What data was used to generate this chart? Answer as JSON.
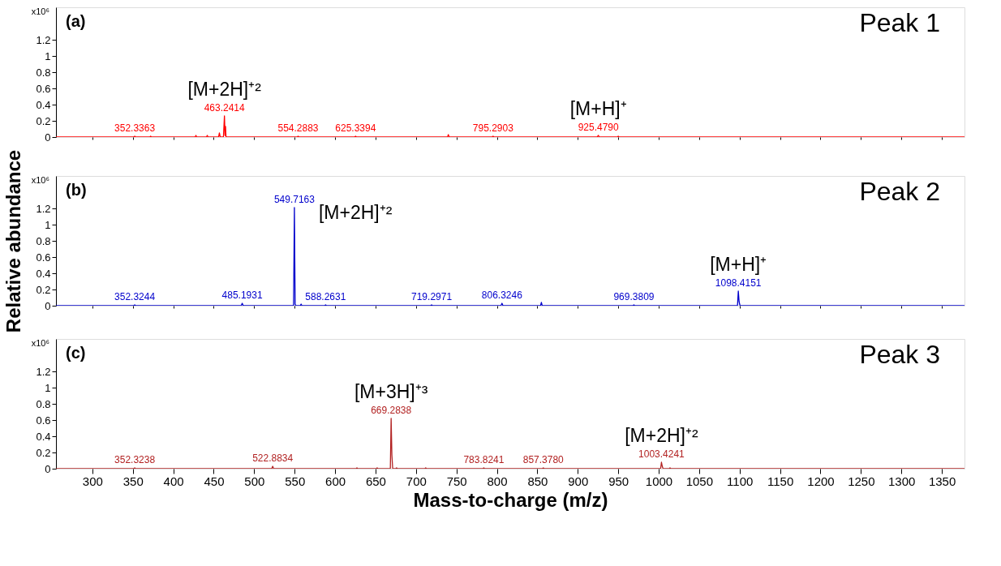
{
  "chart_data": [
    {
      "type": "line",
      "xlim": [
        255,
        1378
      ],
      "ylim": [
        0,
        1.6
      ],
      "yticks": [
        0,
        0.2,
        0.4,
        0.6,
        0.8,
        1,
        1.2
      ],
      "xticks": [
        300,
        350,
        400,
        450,
        500,
        550,
        600,
        650,
        700,
        750,
        800,
        850,
        900,
        950,
        1000,
        1050,
        1100,
        1150,
        1200,
        1250,
        1300,
        1350
      ],
      "tick_labels": "y",
      "series": [
        {
          "color": "#ff0000",
          "x": [
            255,
            351,
            352.3363,
            353.5,
            371,
            372,
            373,
            427,
            428,
            429,
            441,
            442,
            443,
            456,
            457,
            458,
            462,
            463.2414,
            464,
            464.6,
            465.2,
            553,
            554.2883,
            555.5,
            624,
            625.3394,
            626.5,
            739,
            740,
            741,
            794,
            795.2903,
            796.5,
            924,
            925.479,
            926.5,
            949,
            950,
            951,
            1378
          ],
          "values": [
            0,
            0,
            0.01,
            0,
            0,
            0.01,
            0,
            0,
            0.02,
            0,
            0,
            0.02,
            0,
            0,
            0.05,
            0,
            0,
            0.26,
            0.02,
            0.13,
            0,
            0,
            0.01,
            0,
            0,
            0.01,
            0,
            0,
            0.03,
            0,
            0,
            0.01,
            0,
            0,
            0.02,
            0,
            0,
            0.01,
            0,
            0
          ]
        }
      ],
      "annotations": [
        "x10⁶",
        "(a)",
        "Peak 1",
        {
          "text": "352.3363",
          "x": 352.3363,
          "y": 0.01
        },
        {
          "text": "463.2414",
          "x": 463.2414,
          "y": 0.26
        },
        {
          "text": "554.2883",
          "x": 554.2883,
          "y": 0.01
        },
        {
          "text": "625.3394",
          "x": 625.3394,
          "y": 0.01
        },
        {
          "text": "795.2903",
          "x": 795.2903,
          "y": 0.01
        },
        {
          "text": "925.4790",
          "x": 925.479,
          "y": 0.02
        },
        {
          "text": "[M+2H]⁺²",
          "x": 463.2414,
          "y": 0.26
        },
        {
          "text": "[M+H]⁺",
          "x": 925.479,
          "y": 0.02
        }
      ]
    },
    {
      "type": "line",
      "ylabel": "Relative abundance",
      "xlim": [
        255,
        1378
      ],
      "ylim": [
        0,
        1.6
      ],
      "yticks": [
        0,
        0.2,
        0.4,
        0.6,
        0.8,
        1,
        1.2
      ],
      "xticks": [
        300,
        350,
        400,
        450,
        500,
        550,
        600,
        650,
        700,
        750,
        800,
        850,
        900,
        950,
        1000,
        1050,
        1100,
        1150,
        1200,
        1250,
        1300,
        1350
      ],
      "tick_labels": "y",
      "series": [
        {
          "color": "#0000cc",
          "x": [
            255,
            351,
            352.3244,
            353.5,
            484,
            485.1931,
            486.5,
            548.7,
            549.7163,
            550.2,
            550.6,
            551.5,
            557,
            558,
            559,
            587,
            588.2631,
            589.5,
            718,
            719.2971,
            720.5,
            805,
            806.3246,
            807.5,
            854,
            855,
            856,
            968,
            969.3809,
            970.5,
            1097.4,
            1098.4151,
            1099.4,
            1100.5,
            1378
          ],
          "values": [
            0,
            0,
            0.01,
            0,
            0,
            0.03,
            0,
            0,
            1.21,
            0.55,
            0.02,
            0,
            0,
            0.02,
            0,
            0,
            0.01,
            0,
            0,
            0.01,
            0,
            0,
            0.03,
            0,
            0,
            0.04,
            0,
            0,
            0.01,
            0,
            0,
            0.18,
            0.05,
            0,
            0
          ]
        }
      ],
      "annotations": [
        "x10⁶",
        "(b)",
        "Peak 2",
        {
          "text": "352.3244",
          "x": 352.3244,
          "y": 0.01
        },
        {
          "text": "485.1931",
          "x": 485.1931,
          "y": 0.03
        },
        {
          "text": "549.7163",
          "x": 549.7163,
          "y": 1.21
        },
        {
          "text": "588.2631",
          "x": 588.2631,
          "y": 0.01
        },
        {
          "text": "719.2971",
          "x": 719.2971,
          "y": 0.01
        },
        {
          "text": "806.3246",
          "x": 806.3246,
          "y": 0.03
        },
        {
          "text": "969.3809",
          "x": 969.3809,
          "y": 0.01
        },
        {
          "text": "1098.4151",
          "x": 1098.4151,
          "y": 0.18
        },
        {
          "text": "[M+2H]⁺²",
          "x": 549.7163,
          "y": 1.21
        },
        {
          "text": "[M+H]⁺",
          "x": 1098.4151,
          "y": 0.18
        }
      ]
    },
    {
      "type": "line",
      "xlabel": "Mass-to-charge (m/z)",
      "xlim": [
        255,
        1378
      ],
      "ylim": [
        0,
        1.6
      ],
      "yticks": [
        0,
        0.2,
        0.4,
        0.6,
        0.8,
        1,
        1.2
      ],
      "xticks": [
        300,
        350,
        400,
        450,
        500,
        550,
        600,
        650,
        700,
        750,
        800,
        850,
        900,
        950,
        1000,
        1050,
        1100,
        1150,
        1200,
        1250,
        1300,
        1350
      ],
      "series": [
        {
          "color": "#b22222",
          "x": [
            255,
            351,
            352.3238,
            353.5,
            521.7,
            522.8834,
            524,
            626,
            627,
            628,
            651,
            652,
            653,
            668.3,
            669.2838,
            670.2,
            671.2,
            675,
            676,
            677,
            711,
            712,
            713,
            782.6,
            783.8241,
            785,
            856,
            857.378,
            858.5,
            1002.4,
            1003.4241,
            1004.4,
            1005.4,
            1013,
            1014,
            1015,
            1378
          ],
          "values": [
            0,
            0,
            0.01,
            0,
            0,
            0.03,
            0,
            0,
            0.01,
            0,
            0,
            0.01,
            0,
            0,
            0.62,
            0.17,
            0,
            0,
            0.01,
            0,
            0,
            0.01,
            0,
            0,
            0.01,
            0,
            0,
            0.01,
            0,
            0,
            0.08,
            0.03,
            0,
            0,
            0.01,
            0,
            0
          ]
        }
      ],
      "annotations": [
        "x10⁶",
        "(c)",
        "Peak 3",
        {
          "text": "352.3238",
          "x": 352.3238,
          "y": 0.01
        },
        {
          "text": "522.8834",
          "x": 522.8834,
          "y": 0.03
        },
        {
          "text": "669.2838",
          "x": 669.2838,
          "y": 0.62
        },
        {
          "text": "783.8241",
          "x": 783.8241,
          "y": 0.01
        },
        {
          "text": "857.3780",
          "x": 857.378,
          "y": 0.01
        },
        {
          "text": "1003.4241",
          "x": 1003.4241,
          "y": 0.08
        },
        {
          "text": "[M+3H]⁺³",
          "x": 669.2838,
          "y": 0.62
        },
        {
          "text": "[M+2H]⁺²",
          "x": 1003.4241,
          "y": 0.08
        }
      ]
    }
  ]
}
